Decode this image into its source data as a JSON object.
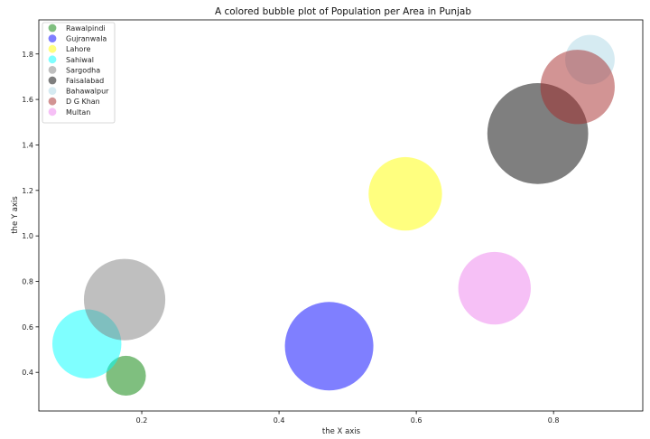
{
  "chart_data": {
    "type": "scatter",
    "title": "A colored bubble plot of Population per Area in Punjab",
    "xlabel": "the X axis",
    "ylabel": "the Y axis",
    "xlim": [
      0.05,
      0.93
    ],
    "ylim": [
      0.23,
      1.95
    ],
    "xticks": [
      0.2,
      0.4,
      0.6,
      0.8
    ],
    "yticks": [
      0.4,
      0.6,
      0.8,
      1.0,
      1.2,
      1.4,
      1.6,
      1.8
    ],
    "xtick_labels": [
      "0.2",
      "0.4",
      "0.6",
      "0.8"
    ],
    "ytick_labels": [
      "0.4",
      "0.6",
      "0.8",
      "1.0",
      "1.2",
      "1.4",
      "1.6",
      "1.8"
    ],
    "grid": false,
    "legend_position": "top-left",
    "series": [
      {
        "name": "Rawalpindi",
        "x": 0.177,
        "y": 0.385,
        "size": 0.45,
        "color": "#008000"
      },
      {
        "name": "Gujranwala",
        "x": 0.473,
        "y": 0.515,
        "size": 1.0,
        "color": "#0000ff"
      },
      {
        "name": "Lahore",
        "x": 0.584,
        "y": 1.185,
        "size": 0.83,
        "color": "#ffff00"
      },
      {
        "name": "Sahiwal",
        "x": 0.12,
        "y": 0.525,
        "size": 0.78,
        "color": "#00ffff"
      },
      {
        "name": "Sargodha",
        "x": 0.175,
        "y": 0.72,
        "size": 0.92,
        "color": "#808080"
      },
      {
        "name": "Faisalabad",
        "x": 0.777,
        "y": 1.45,
        "size": 1.14,
        "color": "#000000"
      },
      {
        "name": "Bahawalpur",
        "x": 0.853,
        "y": 1.775,
        "size": 0.56,
        "color": "#add8e6"
      },
      {
        "name": "D G Khan",
        "x": 0.835,
        "y": 1.655,
        "size": 0.84,
        "color": "#a52a2a"
      },
      {
        "name": "Multan",
        "x": 0.714,
        "y": 0.77,
        "size": 0.82,
        "color": "#ee82ee"
      }
    ],
    "alpha": 0.5
  }
}
